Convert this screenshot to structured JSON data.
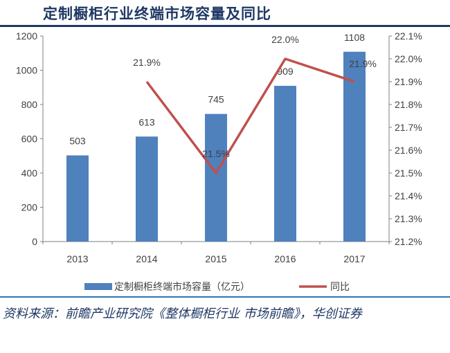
{
  "title": "定制橱柜行业终端市场容量及同比",
  "source": "资料来源：前瞻产业研究院《整体橱柜行业 市场前瞻》，华创证券",
  "chart_data": {
    "type": "bar",
    "categories": [
      "2013",
      "2014",
      "2015",
      "2016",
      "2017"
    ],
    "series": [
      {
        "name": "定制橱柜终端市场容量（亿元）",
        "type": "bar",
        "axis": "left",
        "color": "#4f81bd",
        "values": [
          503,
          613,
          745,
          909,
          1108
        ],
        "labels": [
          "503",
          "613",
          "745",
          "909",
          "1108"
        ]
      },
      {
        "name": "同比",
        "type": "line",
        "axis": "right",
        "color": "#c0504d",
        "values": [
          null,
          21.9,
          21.5,
          22.0,
          21.9
        ],
        "labels": [
          "",
          "21.9%",
          "21.5%",
          "22.0%",
          "21.9%"
        ]
      }
    ],
    "left_axis": {
      "ylim": [
        0,
        1200
      ],
      "ticks": [
        "0",
        "200",
        "400",
        "600",
        "800",
        "1000",
        "1200"
      ]
    },
    "right_axis": {
      "ylim": [
        21.2,
        22.1
      ],
      "ticks": [
        "21.2%",
        "21.3%",
        "21.4%",
        "21.5%",
        "21.6%",
        "21.7%",
        "21.8%",
        "21.9%",
        "22.0%",
        "22.1%"
      ]
    },
    "legend_position": "bottom",
    "grid": false
  }
}
